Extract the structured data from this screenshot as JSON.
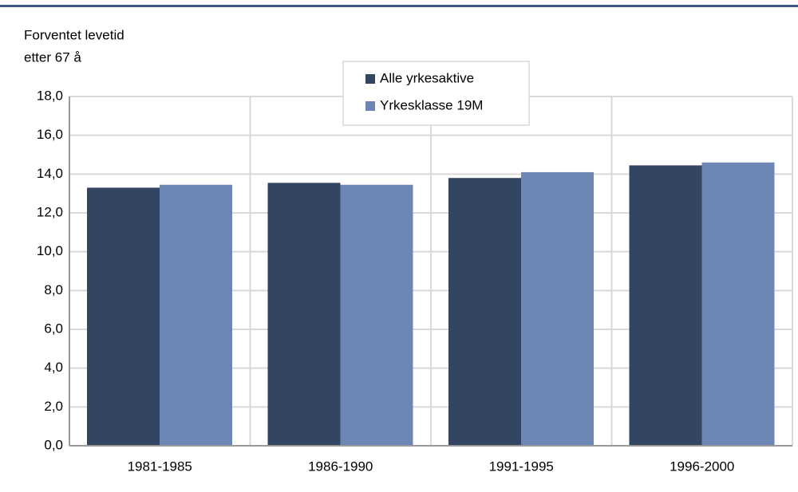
{
  "chart_data": {
    "type": "bar",
    "y_label": [
      "Forventet levetid",
      "etter 67 å"
    ],
    "categories": [
      "1981-1985",
      "1986-1990",
      "1991-1995",
      "1996-2000"
    ],
    "series": [
      {
        "name": "Alle yrkesaktive",
        "color": "#344563",
        "values": [
          13.3,
          13.55,
          13.8,
          14.45
        ]
      },
      {
        "name": "Yrkesklasse 19M",
        "color": "#6d87b4",
        "values": [
          13.45,
          13.45,
          14.1,
          14.6
        ]
      }
    ],
    "ylim": [
      0,
      18
    ],
    "yticks": [
      {
        "value": 0,
        "label": "0,0"
      },
      {
        "value": 2,
        "label": "2,0"
      },
      {
        "value": 4,
        "label": "4,0"
      },
      {
        "value": 6,
        "label": "6,0"
      },
      {
        "value": 8,
        "label": "8,0"
      },
      {
        "value": 10,
        "label": "10,0"
      },
      {
        "value": 12,
        "label": "12,0"
      },
      {
        "value": 14,
        "label": "14,0"
      },
      {
        "value": 16,
        "label": "16,0"
      },
      {
        "value": 18,
        "label": "18,0"
      }
    ],
    "grid": true,
    "legend": "top"
  }
}
